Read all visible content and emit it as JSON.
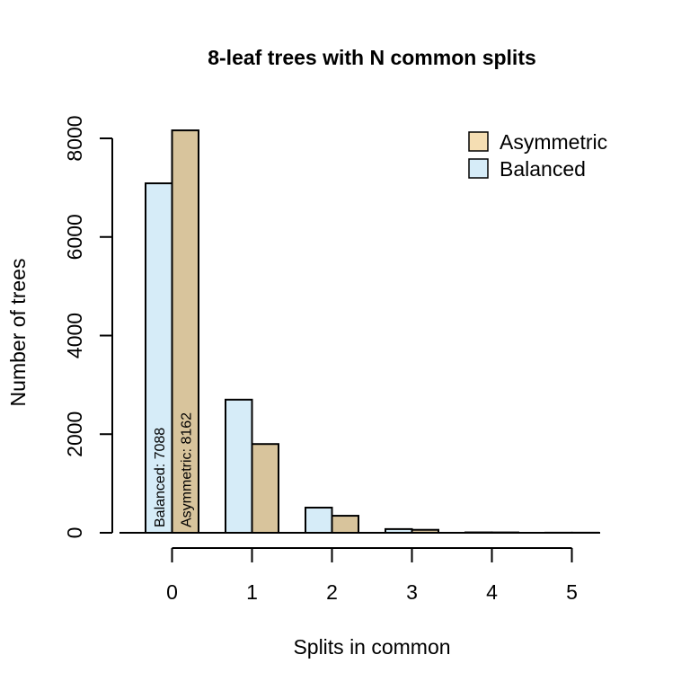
{
  "chart_data": {
    "type": "bar",
    "title": "8-leaf trees with N common splits",
    "xlabel": "Splits in common",
    "ylabel": "Number of trees",
    "categories": [
      "0",
      "1",
      "2",
      "3",
      "4",
      "5"
    ],
    "series": [
      {
        "name": "Balanced",
        "color": "#d6ecf8",
        "values": [
          7088,
          2700,
          510,
          75,
          8,
          2
        ]
      },
      {
        "name": "Asymmetric",
        "color": "#d8c49c",
        "values": [
          8162,
          1800,
          345,
          60,
          7,
          2
        ]
      }
    ],
    "legend_entries": [
      {
        "name": "Asymmetric",
        "color": "#f5deb3"
      },
      {
        "name": "Balanced",
        "color": "#d6ecf8"
      }
    ],
    "legend_position": "top-right",
    "yticks": [
      0,
      2000,
      4000,
      6000,
      8000
    ],
    "ylim": [
      0,
      8000
    ],
    "bar_labels": [
      {
        "series": "Balanced",
        "category": "0",
        "text": "Balanced: 7088"
      },
      {
        "series": "Asymmetric",
        "category": "0",
        "text": "Asymmetric: 8162"
      }
    ]
  }
}
